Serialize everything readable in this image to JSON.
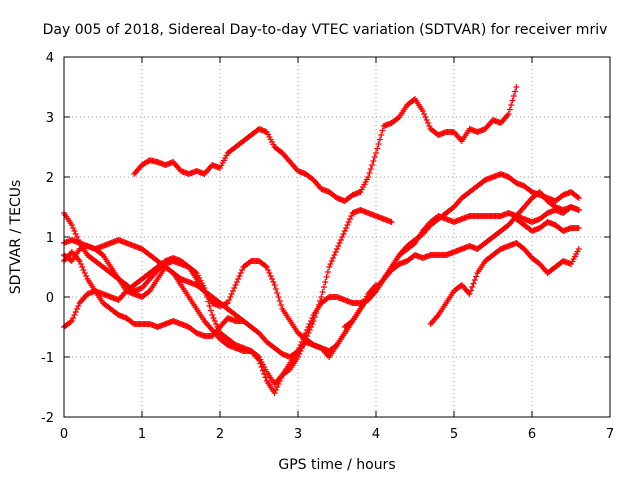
{
  "chart_data": {
    "type": "scatter",
    "title": "Day 005 of 2018, Sidereal Day-to-day VTEC variation (SDTVAR) for receiver mriv",
    "xlabel": "GPS time / hours",
    "ylabel": "SDTVAR / TECUs",
    "xlim": [
      0,
      7
    ],
    "ylim": [
      -2,
      4
    ],
    "xticks": [
      "0",
      "1",
      "2",
      "3",
      "4",
      "5",
      "6",
      "7"
    ],
    "yticks": [
      "-2",
      "-1",
      "0",
      "1",
      "2",
      "3",
      "4"
    ],
    "grid": true,
    "marker": "plus",
    "color": "#ff0000",
    "series": [
      {
        "x": [
          0.9,
          1.0,
          1.1,
          1.2,
          1.3,
          1.4,
          1.5,
          1.6,
          1.7,
          1.8,
          1.9,
          2.0,
          2.1,
          2.2,
          2.3,
          2.4,
          2.5,
          2.6,
          2.7,
          2.8,
          2.9,
          3.0,
          3.1,
          3.2,
          3.3,
          3.4,
          3.5,
          3.6,
          3.7,
          3.8,
          3.9,
          4.0,
          4.1,
          4.2,
          4.3,
          4.4,
          4.5,
          4.6,
          4.7,
          4.8,
          4.9,
          5.0,
          5.1,
          5.2,
          5.3,
          5.4,
          5.5,
          5.6,
          5.7,
          5.8
        ],
        "y": [
          2.05,
          2.2,
          2.28,
          2.25,
          2.2,
          2.25,
          2.1,
          2.05,
          2.1,
          2.05,
          2.2,
          2.15,
          2.4,
          2.5,
          2.6,
          2.7,
          2.8,
          2.75,
          2.5,
          2.4,
          2.25,
          2.1,
          2.05,
          1.95,
          1.8,
          1.75,
          1.65,
          1.6,
          1.7,
          1.75,
          2.0,
          2.4,
          2.85,
          2.9,
          3.0,
          3.2,
          3.3,
          3.1,
          2.8,
          2.7,
          2.75,
          2.75,
          2.6,
          2.8,
          2.75,
          2.8,
          2.95,
          2.9,
          3.05,
          3.5
        ]
      },
      {
        "x": [
          0.0,
          0.1,
          0.2,
          0.3,
          0.4,
          0.5,
          0.6,
          0.7,
          0.8,
          0.9,
          1.0,
          1.1,
          1.2,
          1.3,
          1.4,
          1.5,
          1.6,
          1.7,
          1.8,
          1.9,
          2.0,
          2.1,
          2.2,
          2.3,
          2.4,
          2.5,
          2.6,
          2.7,
          2.8,
          2.9,
          3.0,
          3.1,
          3.2,
          3.3,
          3.4,
          3.5,
          3.6,
          3.7,
          3.8,
          3.9,
          4.0,
          4.1,
          4.2
        ],
        "y": [
          1.4,
          1.2,
          0.9,
          0.7,
          0.6,
          0.5,
          0.4,
          0.3,
          0.2,
          0.1,
          0.15,
          0.3,
          0.45,
          0.55,
          0.6,
          0.55,
          0.5,
          0.4,
          0.15,
          -0.3,
          -0.6,
          -0.7,
          -0.8,
          -0.85,
          -0.9,
          -1.0,
          -1.25,
          -1.45,
          -1.3,
          -1.2,
          -1.0,
          -0.7,
          -0.4,
          0.0,
          0.5,
          0.8,
          1.1,
          1.4,
          1.45,
          1.4,
          1.35,
          1.3,
          1.25
        ]
      },
      {
        "x": [
          0.0,
          0.1,
          0.2,
          0.3,
          0.4,
          0.5,
          0.6,
          0.7,
          0.8,
          0.9,
          1.0,
          1.1,
          1.2,
          1.3,
          1.4,
          1.5,
          1.6,
          1.7,
          1.8,
          1.9,
          2.0,
          2.1,
          2.2,
          2.3,
          2.4,
          2.5,
          2.6,
          2.7,
          2.8,
          2.9,
          3.0,
          3.1,
          3.2,
          3.3,
          3.4,
          3.5,
          3.6,
          3.7,
          3.8,
          3.9,
          4.0
        ],
        "y": [
          0.7,
          0.6,
          0.8,
          0.85,
          0.8,
          0.7,
          0.5,
          0.3,
          0.1,
          0.05,
          0.0,
          0.1,
          0.3,
          0.5,
          0.4,
          0.2,
          0.0,
          -0.2,
          -0.4,
          -0.55,
          -0.7,
          -0.8,
          -0.85,
          -0.9,
          -0.9,
          -1.05,
          -1.4,
          -1.6,
          -1.3,
          -1.1,
          -0.9,
          -0.75,
          -0.8,
          -0.85,
          -1.0,
          -0.8,
          -0.6,
          -0.4,
          -0.2,
          0.05,
          0.2
        ]
      },
      {
        "x": [
          0.0,
          0.1,
          0.2,
          0.3,
          0.4,
          0.5,
          0.6,
          0.7,
          0.8,
          0.9,
          1.0,
          1.1,
          1.2,
          1.3,
          1.4,
          1.5,
          1.6,
          1.7,
          1.8,
          1.9,
          2.0,
          2.1,
          2.2,
          2.3,
          2.4,
          2.5,
          2.6,
          2.7,
          2.8,
          2.9,
          3.0,
          3.1,
          3.2,
          3.3,
          3.4,
          3.5,
          3.6,
          3.7,
          3.8,
          3.9,
          4.0,
          4.1,
          4.2,
          4.3,
          4.4,
          4.5,
          4.6,
          4.7,
          4.8,
          4.9,
          5.0,
          5.1,
          5.2,
          5.3,
          5.4,
          5.5,
          5.6,
          5.7,
          5.8,
          5.9,
          6.0,
          6.1,
          6.2,
          6.3,
          6.4,
          6.5,
          6.6
        ],
        "y": [
          -0.5,
          -0.4,
          -0.1,
          0.05,
          0.1,
          0.05,
          0.0,
          -0.05,
          0.1,
          0.2,
          0.3,
          0.4,
          0.5,
          0.6,
          0.65,
          0.6,
          0.5,
          0.3,
          0.1,
          -0.1,
          -0.15,
          -0.1,
          0.2,
          0.5,
          0.6,
          0.6,
          0.5,
          0.2,
          -0.2,
          -0.4,
          -0.6,
          -0.7,
          -0.8,
          -0.85,
          -0.9,
          -0.8,
          -0.6,
          -0.4,
          -0.2,
          0.0,
          0.1,
          0.3,
          0.5,
          0.7,
          0.8,
          0.9,
          1.1,
          1.25,
          1.35,
          1.3,
          1.25,
          1.3,
          1.35,
          1.35,
          1.35,
          1.35,
          1.35,
          1.4,
          1.35,
          1.3,
          1.25,
          1.3,
          1.4,
          1.45,
          1.4,
          1.5,
          1.45
        ]
      },
      {
        "x": [
          0.0,
          0.1,
          0.2,
          0.3,
          0.4,
          0.5,
          0.6,
          0.7,
          0.8,
          0.9,
          1.0,
          1.1,
          1.2,
          1.3,
          1.4,
          1.5,
          1.6,
          1.7,
          1.8,
          1.9,
          2.0,
          2.1,
          2.2,
          2.3
        ],
        "y": [
          0.6,
          0.75,
          0.6,
          0.3,
          0.1,
          -0.1,
          -0.2,
          -0.3,
          -0.35,
          -0.45,
          -0.45,
          -0.45,
          -0.5,
          -0.45,
          -0.4,
          -0.45,
          -0.5,
          -0.6,
          -0.65,
          -0.65,
          -0.5,
          -0.35,
          -0.4,
          -0.4
        ]
      },
      {
        "x": [
          0.0,
          0.1,
          0.2,
          0.3,
          0.4,
          0.5,
          0.6,
          0.7,
          0.8,
          0.9,
          1.0,
          1.1,
          1.2,
          1.3,
          1.4,
          1.5,
          1.6,
          1.7,
          1.8,
          1.9,
          2.0,
          2.1,
          2.2,
          2.3,
          2.4,
          2.5,
          2.6,
          2.7,
          2.8,
          2.9,
          3.0,
          3.1,
          3.2,
          3.3,
          3.4,
          3.5,
          3.6,
          3.7,
          3.8,
          3.9,
          4.0,
          4.1,
          4.2,
          4.3,
          4.4,
          4.5,
          4.6,
          4.7,
          4.8,
          4.9,
          5.0,
          5.1,
          5.2,
          5.3,
          5.4,
          5.5,
          5.6,
          5.7,
          5.8,
          5.9,
          6.0,
          6.1,
          6.2,
          6.3,
          6.4,
          6.5,
          6.6
        ],
        "y": [
          0.9,
          0.95,
          0.9,
          0.85,
          0.8,
          0.85,
          0.9,
          0.95,
          0.9,
          0.85,
          0.8,
          0.7,
          0.6,
          0.5,
          0.4,
          0.3,
          0.25,
          0.2,
          0.1,
          0.0,
          -0.1,
          -0.2,
          -0.3,
          -0.4,
          -0.5,
          -0.6,
          -0.75,
          -0.85,
          -0.95,
          -1.0,
          -0.9,
          -0.6,
          -0.3,
          -0.1,
          0.0,
          0.0,
          -0.05,
          -0.1,
          -0.1,
          -0.05,
          0.1,
          0.3,
          0.5,
          0.7,
          0.85,
          0.95,
          1.05,
          1.2,
          1.3,
          1.4,
          1.5,
          1.65,
          1.75,
          1.85,
          1.95,
          2.0,
          2.05,
          2.0,
          1.9,
          1.85,
          1.75,
          1.7,
          1.65,
          1.6,
          1.7,
          1.75,
          1.65
        ]
      },
      {
        "x": [
          4.7,
          4.8,
          4.9,
          5.0,
          5.1,
          5.2,
          5.3,
          5.4,
          5.5,
          5.6,
          5.7,
          5.8,
          5.9,
          6.0,
          6.1,
          6.2,
          6.3,
          6.4,
          6.5,
          6.6
        ],
        "y": [
          -0.45,
          -0.3,
          -0.1,
          0.1,
          0.2,
          0.05,
          0.4,
          0.6,
          0.7,
          0.8,
          0.85,
          0.9,
          0.8,
          0.65,
          0.55,
          0.4,
          0.5,
          0.6,
          0.55,
          0.8
        ]
      },
      {
        "x": [
          3.6,
          3.7,
          3.8,
          3.9,
          4.0,
          4.1,
          4.2,
          4.3,
          4.4,
          4.5,
          4.6,
          4.7,
          4.8,
          4.9,
          5.0,
          5.1,
          5.2,
          5.3,
          5.4,
          5.5,
          5.6,
          5.7,
          5.8,
          5.9,
          6.0,
          6.1,
          6.2,
          6.3,
          6.4,
          6.5,
          6.6
        ],
        "y": [
          -0.5,
          -0.4,
          -0.2,
          0.0,
          0.15,
          0.3,
          0.45,
          0.55,
          0.6,
          0.7,
          0.65,
          0.7,
          0.7,
          0.7,
          0.75,
          0.8,
          0.85,
          0.8,
          0.9,
          1.0,
          1.1,
          1.2,
          1.35,
          1.5,
          1.65,
          1.75,
          1.6,
          1.5,
          1.45,
          1.5,
          1.45
        ]
      },
      {
        "x": [
          5.8,
          5.9,
          6.0,
          6.1,
          6.2,
          6.3,
          6.4,
          6.5,
          6.6
        ],
        "y": [
          1.3,
          1.2,
          1.1,
          1.15,
          1.25,
          1.2,
          1.1,
          1.15,
          1.15
        ]
      }
    ]
  }
}
